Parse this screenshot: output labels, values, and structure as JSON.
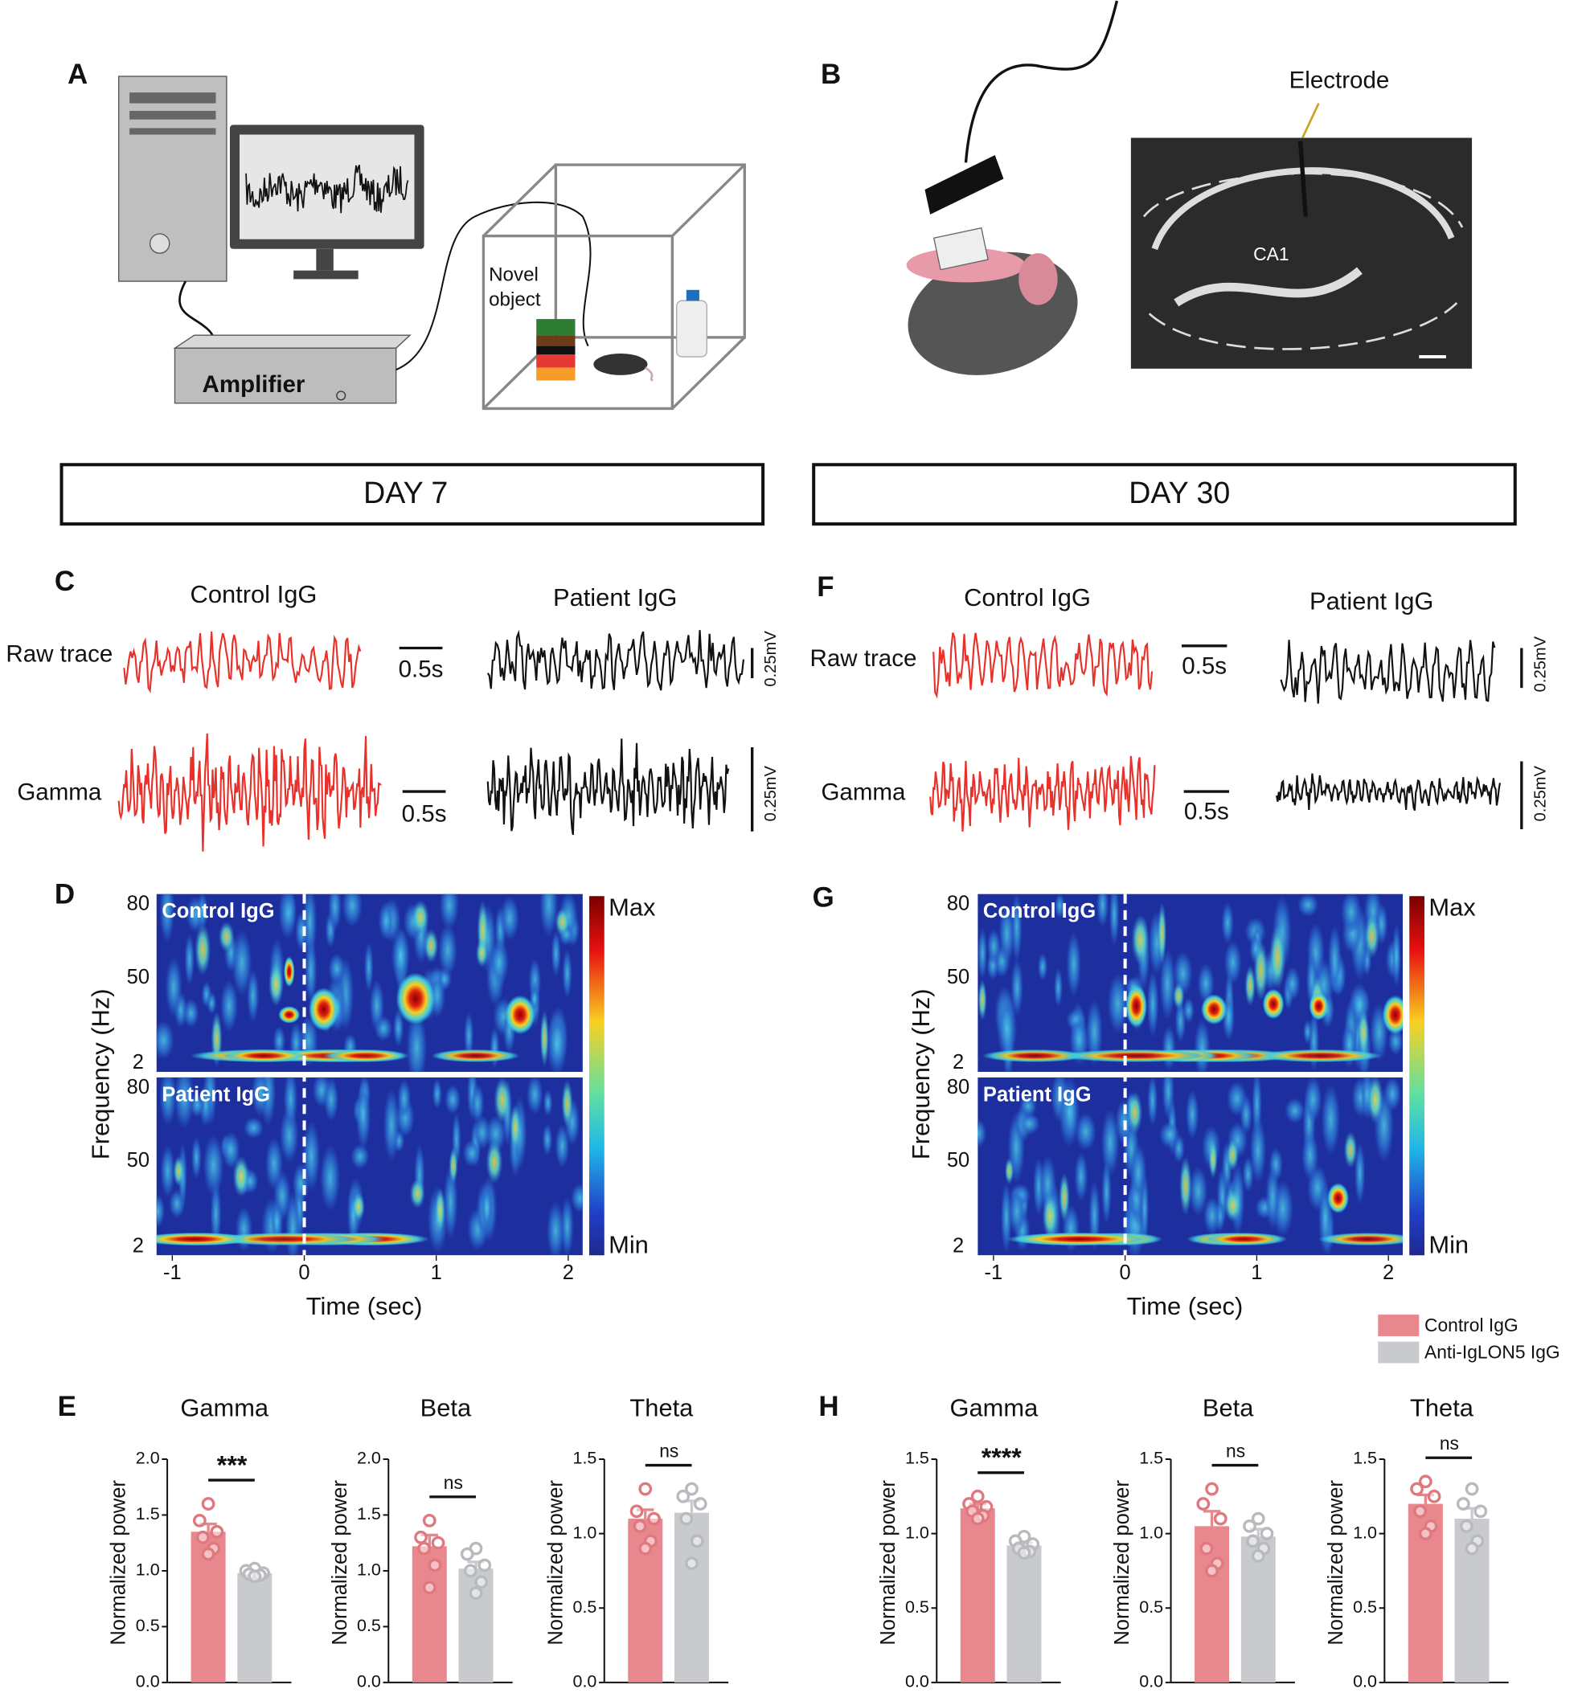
{
  "panel_labels": {
    "a": "A",
    "b": "B",
    "c": "C",
    "d": "D",
    "e": "E",
    "f": "F",
    "g": "G",
    "h": "H"
  },
  "panel_a": {
    "amplifier": "Amplifier",
    "novel_object": [
      "Novel",
      "object"
    ]
  },
  "panel_b": {
    "electrode": "Electrode",
    "region": "CA1"
  },
  "days": [
    "DAY 7",
    "DAY 30"
  ],
  "traces": [
    {
      "columns": [
        "Control IgG",
        "Patient IgG"
      ],
      "rows": [
        "Raw trace",
        "Gamma"
      ],
      "time_scale": "0.5s",
      "voltage_scale": "0.25mV"
    },
    {
      "columns": [
        "Control IgG",
        "Patient IgG"
      ],
      "rows": [
        "Raw trace",
        "Gamma"
      ],
      "time_scale": "0.5s",
      "voltage_scale": "0.25mV"
    }
  ],
  "spectrograms": [
    {
      "ylabel": "Frequency (Hz)",
      "xlabel": "Time (sec)",
      "xlim": [
        -1.12,
        2.11
      ],
      "xticks": [
        -1,
        0,
        1,
        2
      ],
      "yticks": [
        "80",
        "50",
        "2"
      ],
      "panels": [
        "Control IgG",
        "Patient IgG"
      ],
      "colorbar": [
        "Max",
        "Min"
      ]
    },
    {
      "ylabel": "Frequency (Hz)",
      "xlabel": "Time (sec)",
      "xlim": [
        -1.12,
        2.11
      ],
      "xticks": [
        -1,
        0,
        1,
        2
      ],
      "yticks": [
        "80",
        "50",
        "2"
      ],
      "panels": [
        "Control IgG",
        "Patient IgG"
      ],
      "colorbar": [
        "Max",
        "Min"
      ]
    }
  ],
  "legend": [
    {
      "name": "Control IgG",
      "color": "#e8878d"
    },
    {
      "name": "Anti-IgLON5 IgG",
      "color": "#c8cacd"
    }
  ],
  "chart_data": [
    {
      "type": "bar",
      "title": "Gamma",
      "ylabel": "Normalized power",
      "values": [
        1.35,
        0.98
      ],
      "errors": [
        0.07,
        0.02
      ],
      "points": [
        [
          1.6,
          1.45,
          1.35,
          1.3,
          1.2,
          1.15
        ],
        [
          1.02,
          1.0,
          0.98,
          0.97,
          0.96,
          0.95
        ]
      ],
      "significance": "***",
      "ylim": [
        0,
        2.0
      ],
      "yticks": [
        {
          "value": 0,
          "label": "0.0"
        },
        0.5,
        {
          "value": 1,
          "label": "1.0"
        },
        1.5,
        {
          "value": 2,
          "label": "2.0"
        }
      ]
    },
    {
      "type": "bar",
      "title": "Beta",
      "ylabel": "Normalized power",
      "values": [
        1.22,
        1.02
      ],
      "errors": [
        0.1,
        0.06
      ],
      "points": [
        [
          1.45,
          1.3,
          1.25,
          1.2,
          1.05,
          0.85
        ],
        [
          1.2,
          1.15,
          1.05,
          1.0,
          0.9,
          0.8
        ]
      ],
      "significance": "ns",
      "ylim": [
        0,
        2.0
      ],
      "yticks": [
        {
          "value": 0,
          "label": "0.0"
        },
        0.5,
        {
          "value": 1,
          "label": "1.0"
        },
        1.5,
        {
          "value": 2,
          "label": "2.0"
        }
      ]
    },
    {
      "type": "bar",
      "title": "Theta",
      "ylabel": "Normalized power",
      "values": [
        1.1,
        1.14
      ],
      "errors": [
        0.06,
        0.08
      ],
      "points": [
        [
          1.3,
          1.15,
          1.1,
          1.05,
          0.95,
          0.9
        ],
        [
          1.3,
          1.25,
          1.2,
          1.1,
          0.95,
          0.8
        ]
      ],
      "significance": "ns",
      "ylim": [
        0,
        1.5
      ],
      "yticks": [
        {
          "value": 0,
          "label": "0.0"
        },
        0.5,
        {
          "value": 1,
          "label": "1.0"
        },
        1.5
      ]
    },
    {
      "type": "bar",
      "title": "Gamma",
      "ylabel": "Normalized power",
      "values": [
        1.17,
        0.92
      ],
      "errors": [
        0.03,
        0.02
      ],
      "points": [
        [
          1.25,
          1.2,
          1.18,
          1.15,
          1.12,
          1.1
        ],
        [
          0.98,
          0.95,
          0.93,
          0.9,
          0.88,
          0.87
        ]
      ],
      "significance": "****",
      "ylim": [
        0,
        1.5
      ],
      "yticks": [
        {
          "value": 0,
          "label": "0.0"
        },
        0.5,
        {
          "value": 1,
          "label": "1.0"
        },
        1.5
      ]
    },
    {
      "type": "bar",
      "title": "Beta",
      "ylabel": "Normalized power",
      "values": [
        1.05,
        0.98
      ],
      "errors": [
        0.1,
        0.05
      ],
      "points": [
        [
          1.3,
          1.2,
          1.1,
          0.9,
          0.8,
          0.75
        ],
        [
          1.1,
          1.05,
          1.0,
          0.95,
          0.9,
          0.85
        ]
      ],
      "significance": "ns",
      "ylim": [
        0,
        1.5
      ],
      "yticks": [
        {
          "value": 0,
          "label": "0.0"
        },
        0.5,
        {
          "value": 1,
          "label": "1.0"
        },
        1.5
      ]
    },
    {
      "type": "bar",
      "title": "Theta",
      "ylabel": "Normalized power",
      "values": [
        1.2,
        1.1
      ],
      "errors": [
        0.06,
        0.07
      ],
      "points": [
        [
          1.35,
          1.3,
          1.25,
          1.15,
          1.05,
          1.0
        ],
        [
          1.3,
          1.2,
          1.15,
          1.05,
          0.95,
          0.9
        ]
      ],
      "significance": "ns",
      "ylim": [
        0,
        1.5
      ],
      "yticks": [
        {
          "value": 0,
          "label": "0.0"
        },
        0.5,
        {
          "value": 1,
          "label": "1.0"
        },
        1.5
      ]
    }
  ]
}
